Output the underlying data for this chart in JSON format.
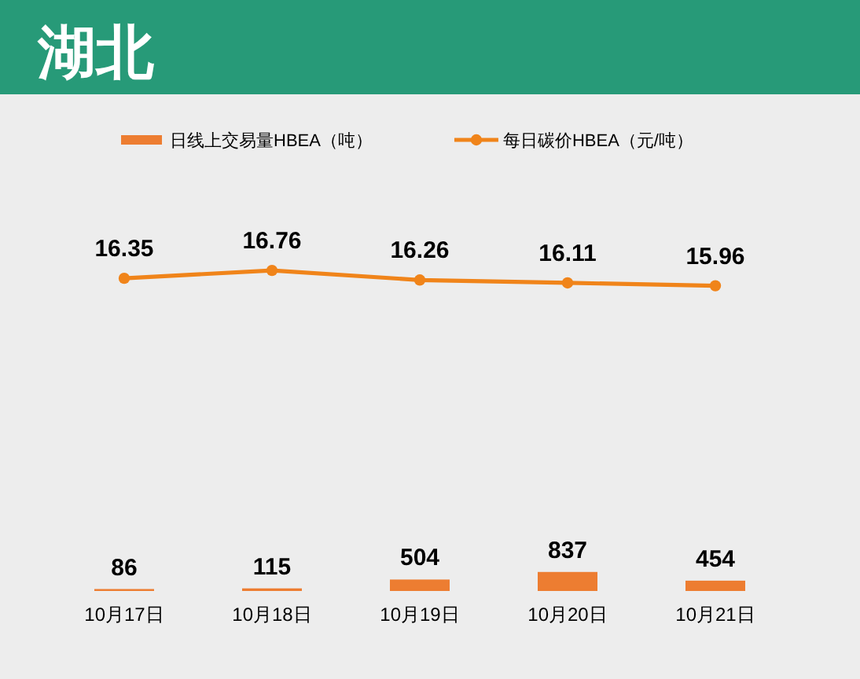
{
  "chart_data": [
    {
      "type": "bar",
      "categories": [
        "10月17日",
        "10月18日",
        "10月19日",
        "10月20日",
        "10月21日"
      ],
      "series": [
        {
          "name": "日线上交易量HBEA（吨）",
          "color": "#ed7d31",
          "values": [
            86,
            115,
            504,
            837,
            454
          ]
        }
      ],
      "data_labels": true,
      "legend": "top",
      "tick_labels": "x"
    },
    {
      "type": "line",
      "title": "湖北",
      "categories": [
        null,
        null,
        null,
        null,
        null
      ],
      "series": [
        {
          "name": "每日碳价HBEA（元/吨）",
          "color": "#f0841a",
          "values": [
            16.35,
            16.76,
            16.26,
            16.11,
            15.96
          ]
        }
      ],
      "data_labels": true,
      "legend": "top",
      "marker": "circle",
      "tick_labels": false
    }
  ]
}
